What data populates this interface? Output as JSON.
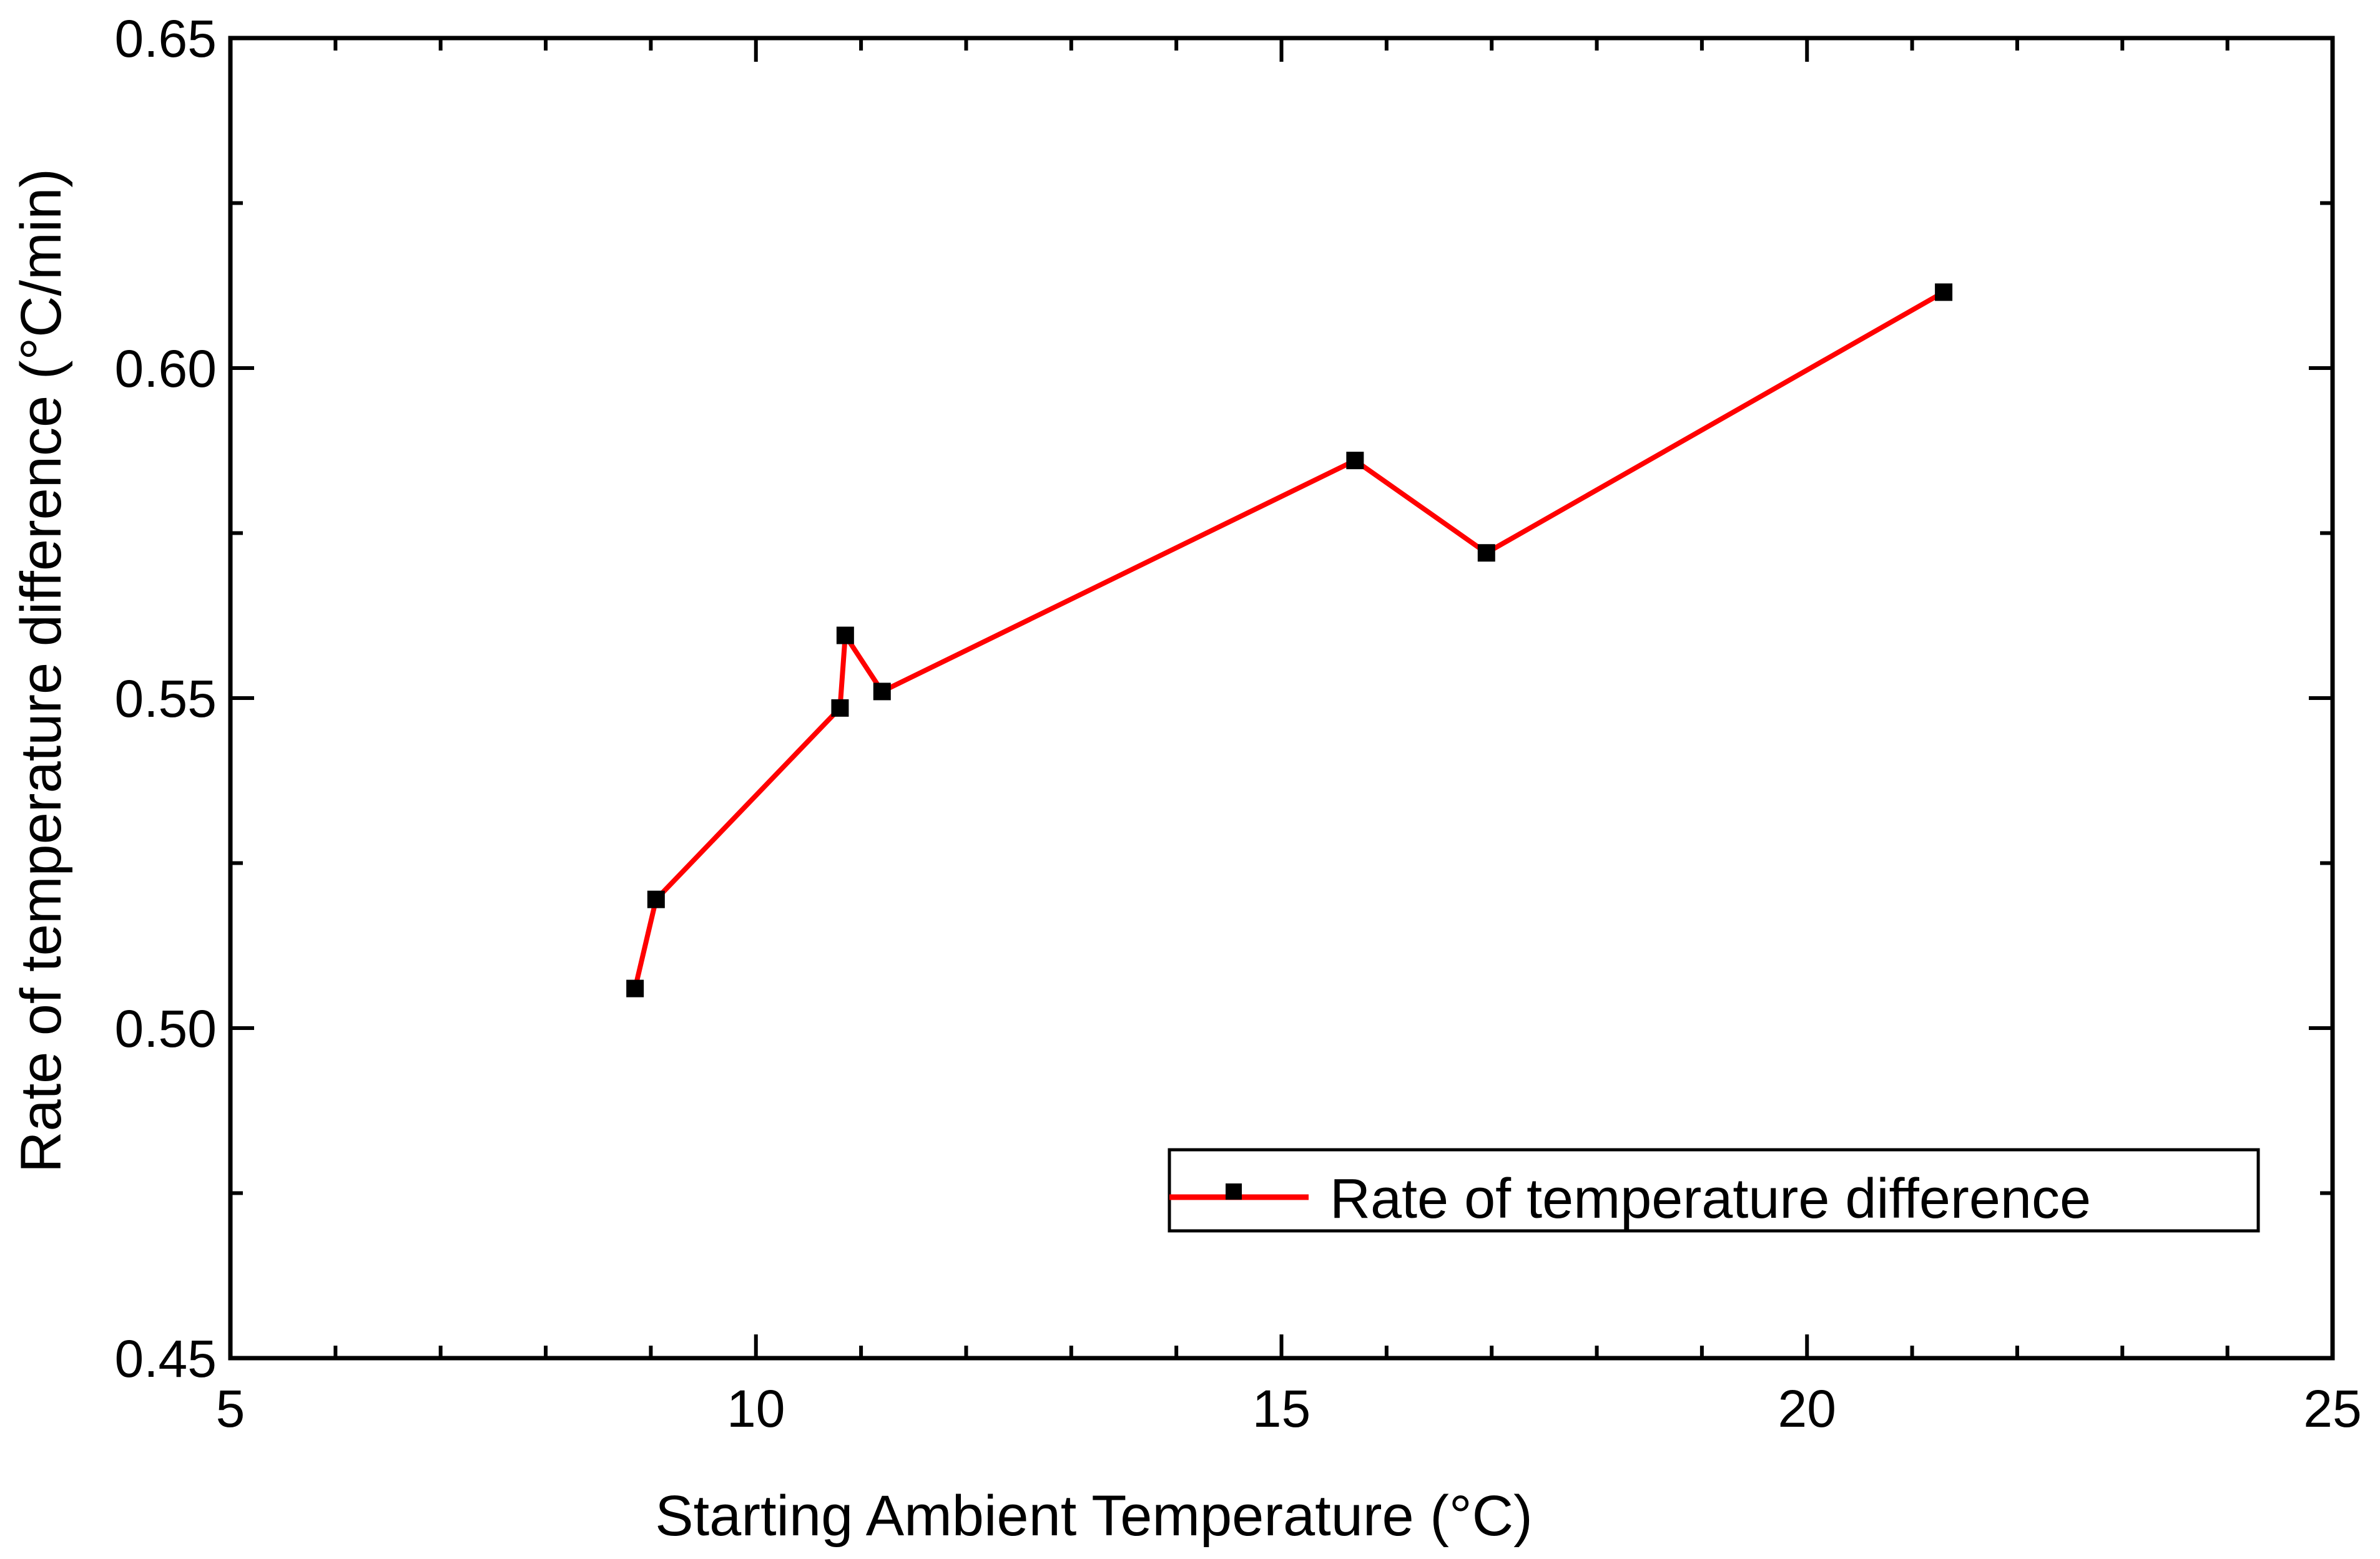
{
  "chart_data": {
    "type": "line",
    "title": "",
    "xlabel": "Starting Ambient Temperature (°C)",
    "ylabel": "Rate of temperature difference (°C/min)",
    "xlim": [
      5,
      25
    ],
    "ylim": [
      0.45,
      0.65
    ],
    "x_ticks": [
      5,
      10,
      15,
      20,
      25
    ],
    "x_tick_labels": [
      "5",
      "10",
      "15",
      "20",
      "25"
    ],
    "y_ticks": [
      0.45,
      0.5,
      0.55,
      0.6,
      0.65
    ],
    "y_tick_labels": [
      "0.45",
      "0.50",
      "0.55",
      "0.60",
      "0.65"
    ],
    "x_minor_step": 1,
    "y_minor_step": 0.025,
    "grid": false,
    "legend_position": "lower-right",
    "series": [
      {
        "name": "Rate of temperature difference",
        "color": "#ff0000",
        "marker": "square",
        "marker_color": "#000000",
        "x": [
          8.85,
          9.05,
          10.8,
          10.85,
          11.2,
          15.7,
          16.95,
          21.3
        ],
        "values": [
          0.506,
          0.5195,
          0.5485,
          0.5595,
          0.551,
          0.586,
          0.572,
          0.6115
        ]
      }
    ]
  }
}
